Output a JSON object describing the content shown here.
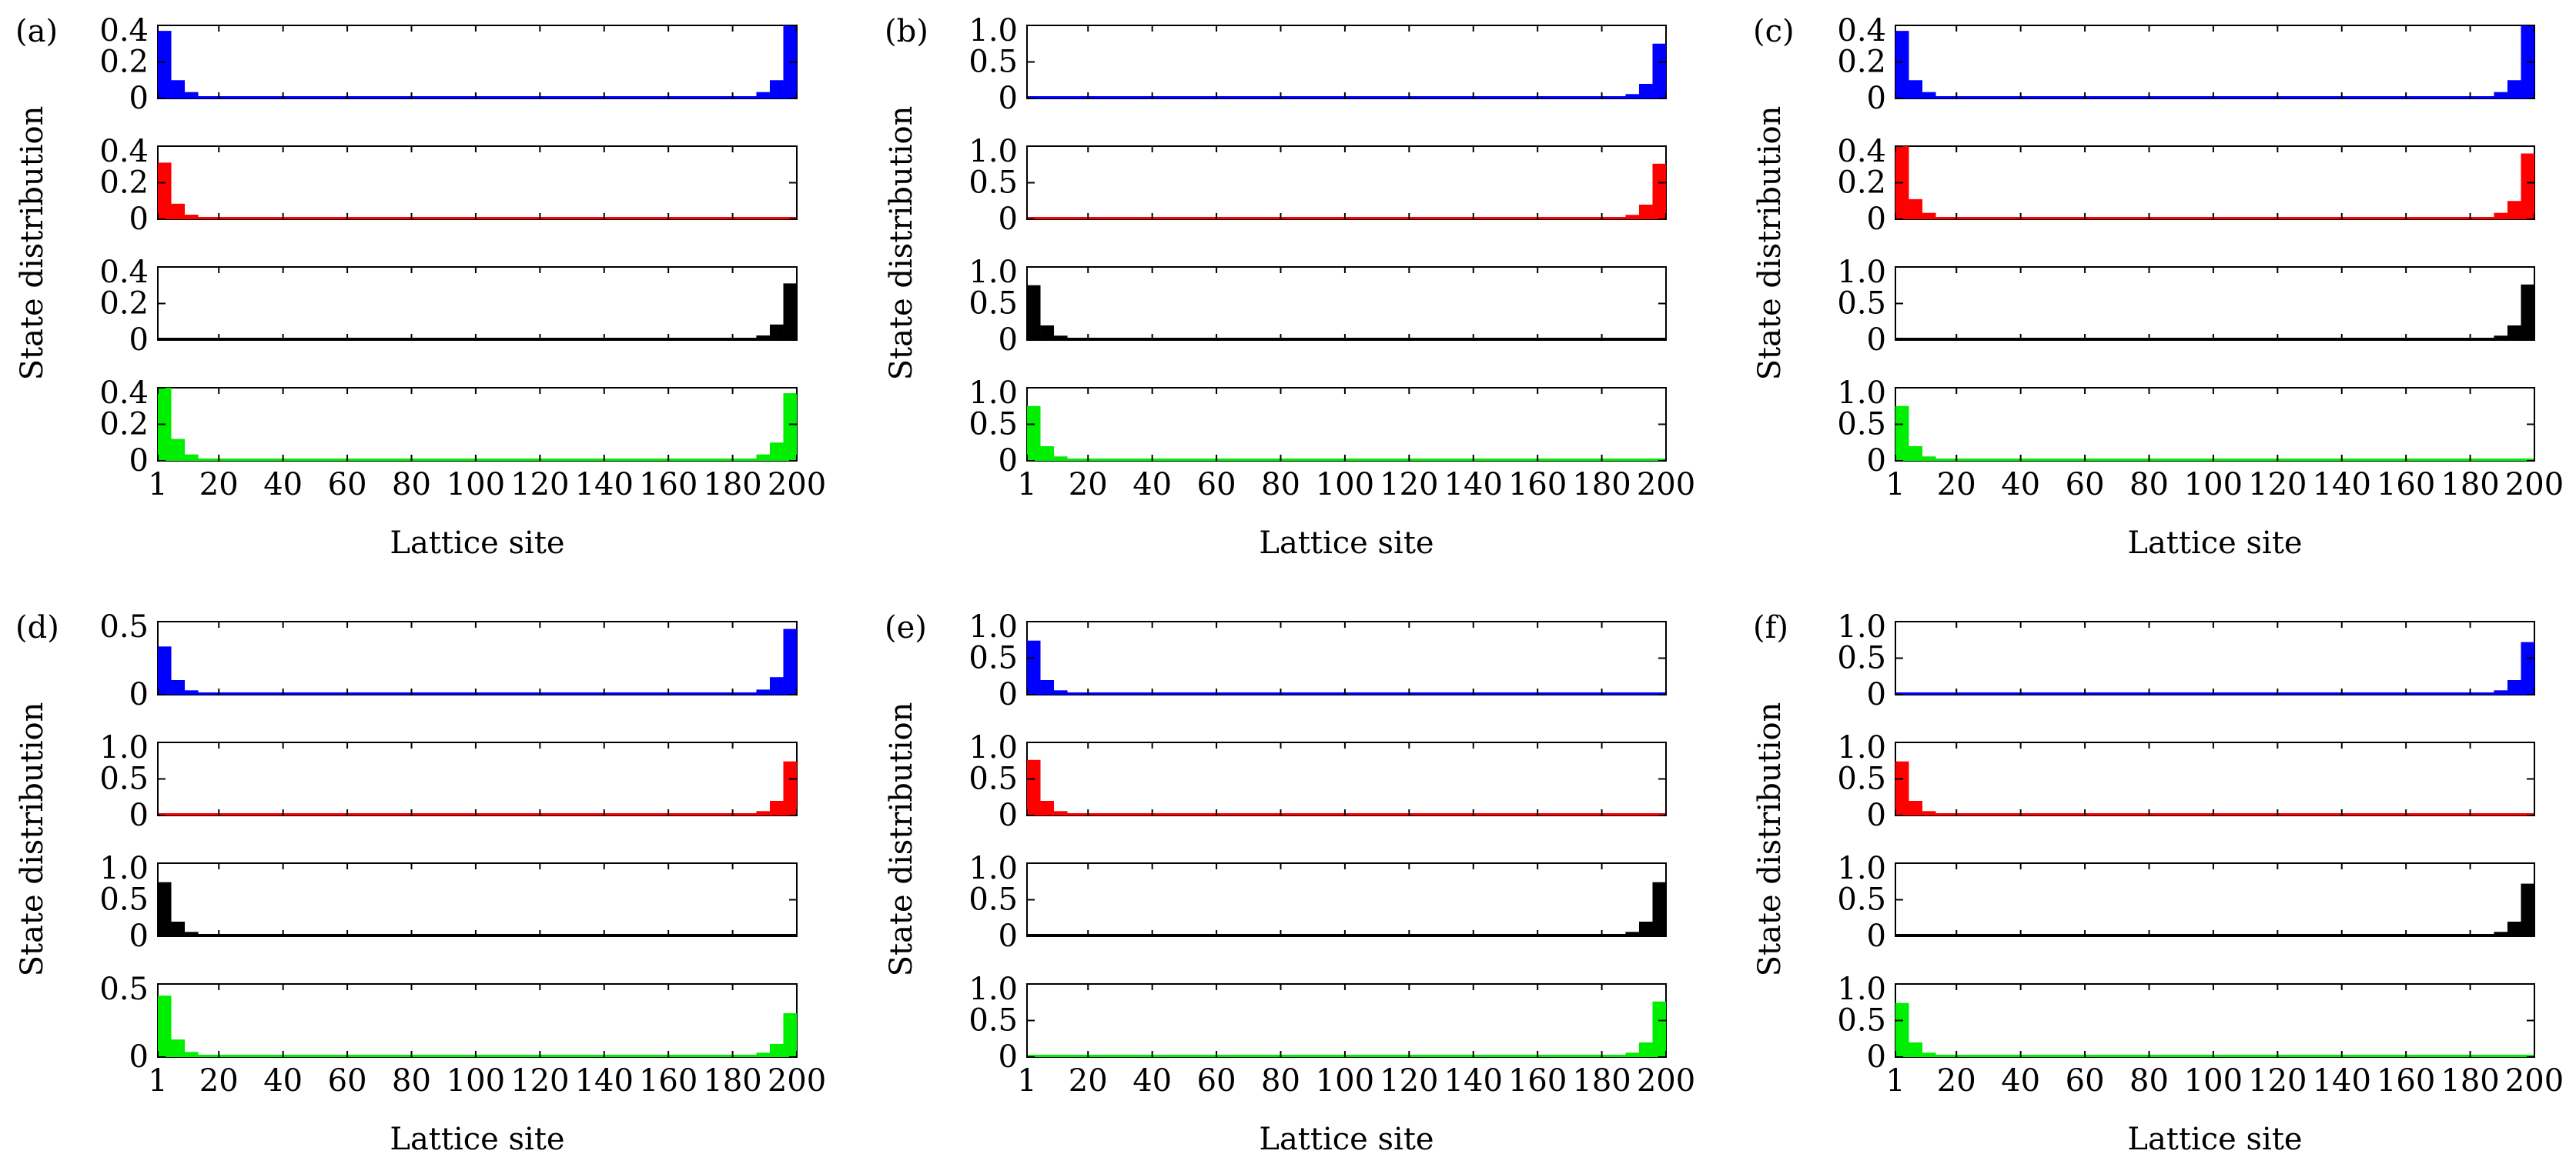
{
  "chart_data": [
    {
      "label": "(a)",
      "type": "bar",
      "xlabel": "Lattice site",
      "ylabel": "State distribution",
      "xticks": [
        1,
        20,
        40,
        60,
        80,
        100,
        120,
        140,
        160,
        180,
        200
      ],
      "xlim": [
        1,
        200
      ],
      "series": [
        {
          "name": "row1",
          "color": "#0000ff",
          "ylim": [
            0,
            0.4
          ],
          "yticks": [
            "0",
            "0.2",
            "0.4"
          ],
          "left": [
            0.37,
            0.1,
            0.035,
            0.012,
            0.004
          ],
          "right": [
            0.004,
            0.012,
            0.035,
            0.1,
            0.4
          ]
        },
        {
          "name": "row2",
          "color": "#ff0000",
          "ylim": [
            0,
            0.4
          ],
          "yticks": [
            "0",
            "0.2",
            "0.4"
          ],
          "left": [
            0.31,
            0.085,
            0.025,
            0.008,
            0.003
          ],
          "right": [
            0,
            0,
            0,
            0,
            0
          ]
        },
        {
          "name": "row3",
          "color": "#000000",
          "ylim": [
            0,
            0.4
          ],
          "yticks": [
            "0",
            "0.2",
            "0.4"
          ],
          "left": [
            0,
            0,
            0,
            0,
            0
          ],
          "right": [
            0.002,
            0.008,
            0.025,
            0.085,
            0.31
          ]
        },
        {
          "name": "row4",
          "color": "#00ee00",
          "ylim": [
            0,
            0.4
          ],
          "yticks": [
            "0",
            "0.2",
            "0.4"
          ],
          "left": [
            0.4,
            0.12,
            0.035,
            0.012,
            0.004
          ],
          "right": [
            0.004,
            0.012,
            0.035,
            0.1,
            0.37
          ]
        }
      ]
    },
    {
      "label": "(b)",
      "type": "bar",
      "xlabel": "Lattice site",
      "ylabel": "State distribution",
      "xticks": [
        1,
        20,
        40,
        60,
        80,
        100,
        120,
        140,
        160,
        180,
        200
      ],
      "xlim": [
        1,
        200
      ],
      "series": [
        {
          "name": "row1",
          "color": "#0000ff",
          "ylim": [
            0,
            1.0
          ],
          "yticks": [
            "0",
            "0.5",
            "1.0"
          ],
          "left": [
            0.02,
            0.01,
            0.005,
            0,
            0
          ],
          "right": [
            0.005,
            0.02,
            0.06,
            0.2,
            0.75
          ]
        },
        {
          "name": "row2",
          "color": "#ff0000",
          "ylim": [
            0,
            1.0
          ],
          "yticks": [
            "0",
            "0.5",
            "1.0"
          ],
          "left": [
            0,
            0,
            0,
            0,
            0
          ],
          "right": [
            0.005,
            0.02,
            0.06,
            0.2,
            0.76
          ]
        },
        {
          "name": "row3",
          "color": "#000000",
          "ylim": [
            0,
            1.0
          ],
          "yticks": [
            "0",
            "0.5",
            "1.0"
          ],
          "left": [
            0.75,
            0.2,
            0.06,
            0.02,
            0.005
          ],
          "right": [
            0,
            0,
            0,
            0,
            0
          ]
        },
        {
          "name": "row4",
          "color": "#00ee00",
          "ylim": [
            0,
            1.0
          ],
          "yticks": [
            "0",
            "0.5",
            "1.0"
          ],
          "left": [
            0.75,
            0.2,
            0.06,
            0.02,
            0.005
          ],
          "right": [
            0,
            0,
            0,
            0.01,
            0.02
          ]
        }
      ]
    },
    {
      "label": "(c)",
      "type": "bar",
      "xlabel": "Lattice site",
      "ylabel": "State distribution",
      "xticks": [
        1,
        20,
        40,
        60,
        80,
        100,
        120,
        140,
        160,
        180,
        200
      ],
      "xlim": [
        1,
        200
      ],
      "series": [
        {
          "name": "row1",
          "color": "#0000ff",
          "ylim": [
            0,
            0.4
          ],
          "yticks": [
            "0",
            "0.2",
            "0.4"
          ],
          "left": [
            0.37,
            0.1,
            0.035,
            0.012,
            0.004
          ],
          "right": [
            0.004,
            0.012,
            0.035,
            0.1,
            0.4
          ]
        },
        {
          "name": "row2",
          "color": "#ff0000",
          "ylim": [
            0,
            0.4
          ],
          "yticks": [
            "0",
            "0.2",
            "0.4"
          ],
          "left": [
            0.4,
            0.11,
            0.035,
            0.012,
            0.004
          ],
          "right": [
            0.004,
            0.012,
            0.035,
            0.1,
            0.36
          ]
        },
        {
          "name": "row3",
          "color": "#000000",
          "ylim": [
            0,
            1.0
          ],
          "yticks": [
            "0",
            "0.5",
            "1.0"
          ],
          "left": [
            0,
            0,
            0,
            0,
            0
          ],
          "right": [
            0.005,
            0.02,
            0.06,
            0.2,
            0.76
          ]
        },
        {
          "name": "row4",
          "color": "#00ee00",
          "ylim": [
            0,
            1.0
          ],
          "yticks": [
            "0",
            "0.5",
            "1.0"
          ],
          "left": [
            0.75,
            0.2,
            0.06,
            0.02,
            0.005
          ],
          "right": [
            0,
            0,
            0,
            0.01,
            0.02
          ]
        }
      ]
    },
    {
      "label": "(d)",
      "type": "bar",
      "xlabel": "Lattice site",
      "ylabel": "State distribution",
      "xticks": [
        1,
        20,
        40,
        60,
        80,
        100,
        120,
        140,
        160,
        180,
        200
      ],
      "xlim": [
        1,
        200
      ],
      "series": [
        {
          "name": "row1",
          "color": "#0000ff",
          "ylim": [
            0,
            0.5
          ],
          "yticks": [
            "0",
            "0.5"
          ],
          "left": [
            0.33,
            0.1,
            0.03,
            0.01,
            0.004
          ],
          "right": [
            0.004,
            0.012,
            0.035,
            0.12,
            0.45
          ]
        },
        {
          "name": "row2",
          "color": "#ff0000",
          "ylim": [
            0,
            1.0
          ],
          "yticks": [
            "0",
            "0.5",
            "1.0"
          ],
          "left": [
            0.02,
            0.01,
            0,
            0,
            0
          ],
          "right": [
            0.005,
            0.02,
            0.06,
            0.2,
            0.74
          ]
        },
        {
          "name": "row3",
          "color": "#000000",
          "ylim": [
            0,
            1.0
          ],
          "yticks": [
            "0",
            "0.5",
            "1.0"
          ],
          "left": [
            0.74,
            0.2,
            0.06,
            0.02,
            0.005
          ],
          "right": [
            0,
            0,
            0,
            0.01,
            0.02
          ]
        },
        {
          "name": "row4",
          "color": "#00ee00",
          "ylim": [
            0,
            0.5
          ],
          "yticks": [
            "0",
            "0.5"
          ],
          "left": [
            0.42,
            0.12,
            0.035,
            0.012,
            0.004
          ],
          "right": [
            0.004,
            0.012,
            0.03,
            0.09,
            0.3
          ]
        }
      ]
    },
    {
      "label": "(e)",
      "type": "bar",
      "xlabel": "Lattice site",
      "ylabel": "State distribution",
      "xticks": [
        1,
        20,
        40,
        60,
        80,
        100,
        120,
        140,
        160,
        180,
        200
      ],
      "xlim": [
        1,
        200
      ],
      "series": [
        {
          "name": "row1",
          "color": "#0000ff",
          "ylim": [
            0,
            1.0
          ],
          "yticks": [
            "0",
            "0.5",
            "1.0"
          ],
          "left": [
            0.74,
            0.2,
            0.06,
            0.02,
            0.005
          ],
          "right": [
            0,
            0,
            0,
            0.01,
            0.02
          ]
        },
        {
          "name": "row2",
          "color": "#ff0000",
          "ylim": [
            0,
            1.0
          ],
          "yticks": [
            "0",
            "0.5",
            "1.0"
          ],
          "left": [
            0.76,
            0.2,
            0.06,
            0.02,
            0.005
          ],
          "right": [
            0,
            0,
            0,
            0,
            0
          ]
        },
        {
          "name": "row3",
          "color": "#000000",
          "ylim": [
            0,
            1.0
          ],
          "yticks": [
            "0",
            "0.5",
            "1.0"
          ],
          "left": [
            0.02,
            0.01,
            0,
            0,
            0
          ],
          "right": [
            0.005,
            0.02,
            0.06,
            0.2,
            0.74
          ]
        },
        {
          "name": "row4",
          "color": "#00ee00",
          "ylim": [
            0,
            1.0
          ],
          "yticks": [
            "0",
            "0.5",
            "1.0"
          ],
          "left": [
            0.02,
            0.01,
            0,
            0,
            0
          ],
          "right": [
            0.005,
            0.02,
            0.06,
            0.2,
            0.76
          ]
        }
      ]
    },
    {
      "label": "(f)",
      "type": "bar",
      "xlabel": "Lattice site",
      "ylabel": "State distribution",
      "xticks": [
        1,
        20,
        40,
        60,
        80,
        100,
        120,
        140,
        160,
        180,
        200
      ],
      "xlim": [
        1,
        200
      ],
      "series": [
        {
          "name": "row1",
          "color": "#0000ff",
          "ylim": [
            0,
            1.0
          ],
          "yticks": [
            "0",
            "0.5",
            "1.0"
          ],
          "left": [
            0,
            0,
            0,
            0,
            0
          ],
          "right": [
            0.005,
            0.02,
            0.06,
            0.2,
            0.72
          ]
        },
        {
          "name": "row2",
          "color": "#ff0000",
          "ylim": [
            0,
            1.0
          ],
          "yticks": [
            "0",
            "0.5",
            "1.0"
          ],
          "left": [
            0.74,
            0.2,
            0.06,
            0.02,
            0.005
          ],
          "right": [
            0,
            0,
            0,
            0.01,
            0.02
          ]
        },
        {
          "name": "row3",
          "color": "#000000",
          "ylim": [
            0,
            1.0
          ],
          "yticks": [
            "0",
            "0.5",
            "1.0"
          ],
          "left": [
            0.02,
            0.01,
            0,
            0,
            0
          ],
          "right": [
            0.005,
            0.02,
            0.06,
            0.2,
            0.72
          ]
        },
        {
          "name": "row4",
          "color": "#00ee00",
          "ylim": [
            0,
            1.0
          ],
          "yticks": [
            "0",
            "0.5",
            "1.0"
          ],
          "left": [
            0.74,
            0.2,
            0.06,
            0.02,
            0.005
          ],
          "right": [
            0,
            0,
            0,
            0.01,
            0.02
          ]
        }
      ]
    }
  ]
}
